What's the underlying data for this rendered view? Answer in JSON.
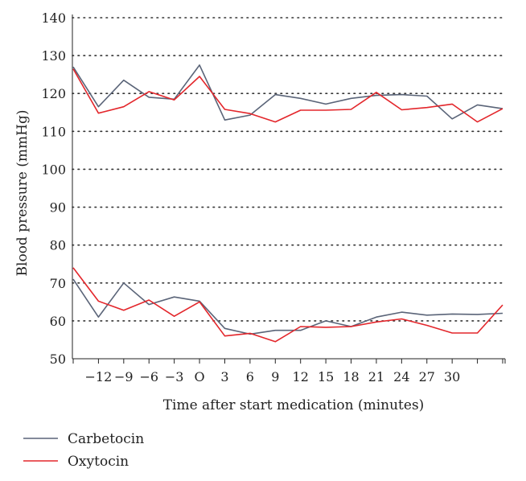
{
  "chart_data": {
    "type": "line",
    "title": "",
    "xlabel": "Time after start medication (minutes)",
    "ylabel": "Blood pressure (mmHg)",
    "ylim": [
      50,
      140
    ],
    "yticks": [
      50,
      60,
      70,
      80,
      90,
      100,
      110,
      120,
      130,
      140
    ],
    "grid": "horizontal dotted",
    "legend": "bottom-left",
    "x_tick_labels": [
      "−12",
      "−9",
      "−6",
      "−3",
      "O",
      "3",
      "6",
      "9",
      "12",
      "15",
      "18",
      "21",
      "24",
      "27",
      "30"
    ],
    "x": [
      -15,
      -12,
      -9,
      -6,
      -3,
      0,
      3,
      6,
      9,
      12,
      15,
      18,
      21,
      24,
      27,
      30,
      33,
      36
    ],
    "series": [
      {
        "name": "Carbetocin",
        "color": "#5a6478",
        "systolic": [
          127,
          116.5,
          123.5,
          119,
          118.5,
          127.5,
          113,
          114.3,
          119.7,
          118.7,
          117.2,
          118.7,
          119.5,
          119.7,
          119.3,
          113.3,
          117,
          116
        ],
        "diastolic": [
          71,
          61,
          70,
          64.3,
          66.3,
          65.2,
          58,
          56.5,
          57.5,
          57.5,
          60,
          58.5,
          61,
          62.3,
          61.5,
          61.8,
          61.7,
          62
        ]
      },
      {
        "name": "Oxytocin",
        "color": "#e3262b",
        "systolic": [
          126.5,
          114.8,
          116.5,
          120.5,
          118.3,
          124.5,
          115.8,
          114.7,
          112.5,
          115.6,
          115.6,
          115.8,
          120.3,
          115.7,
          116.3,
          117.2,
          112.5,
          116
        ],
        "diastolic": [
          74,
          65.2,
          62.8,
          65.5,
          61.2,
          65,
          56,
          56.7,
          54.5,
          58.5,
          58.3,
          58.5,
          59.7,
          60.5,
          58.8,
          56.8,
          56.8,
          64.2
        ]
      }
    ]
  }
}
